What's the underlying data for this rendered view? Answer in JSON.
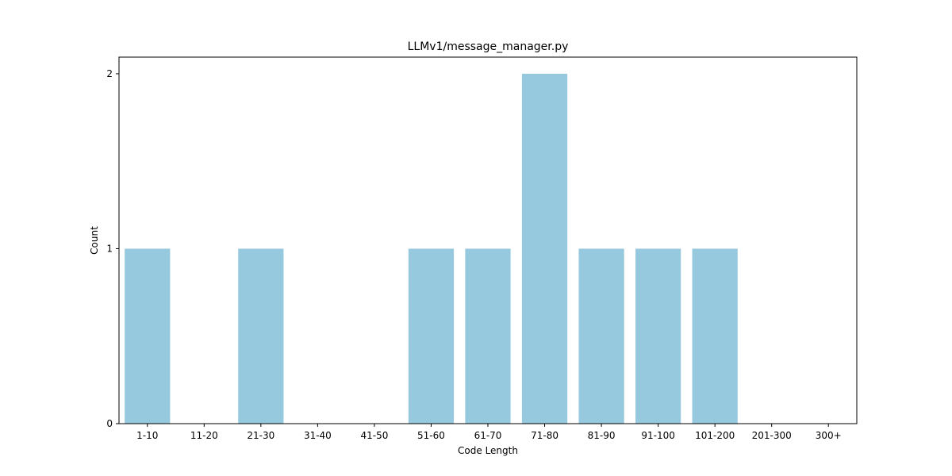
{
  "chart_data": {
    "type": "bar",
    "title": "LLMv1/message_manager.py",
    "xlabel": "Code Length",
    "ylabel": "Count",
    "categories": [
      "1-10",
      "11-20",
      "21-30",
      "31-40",
      "41-50",
      "51-60",
      "61-70",
      "71-80",
      "81-90",
      "91-100",
      "101-200",
      "201-300",
      "300+"
    ],
    "values": [
      1,
      0,
      1,
      0,
      0,
      1,
      1,
      2,
      1,
      1,
      1,
      0,
      0
    ],
    "ylim": [
      0,
      2.095
    ],
    "yticks": [
      0,
      1,
      2
    ],
    "bar_color": "#96c9de",
    "grid": false,
    "legend": "none"
  }
}
